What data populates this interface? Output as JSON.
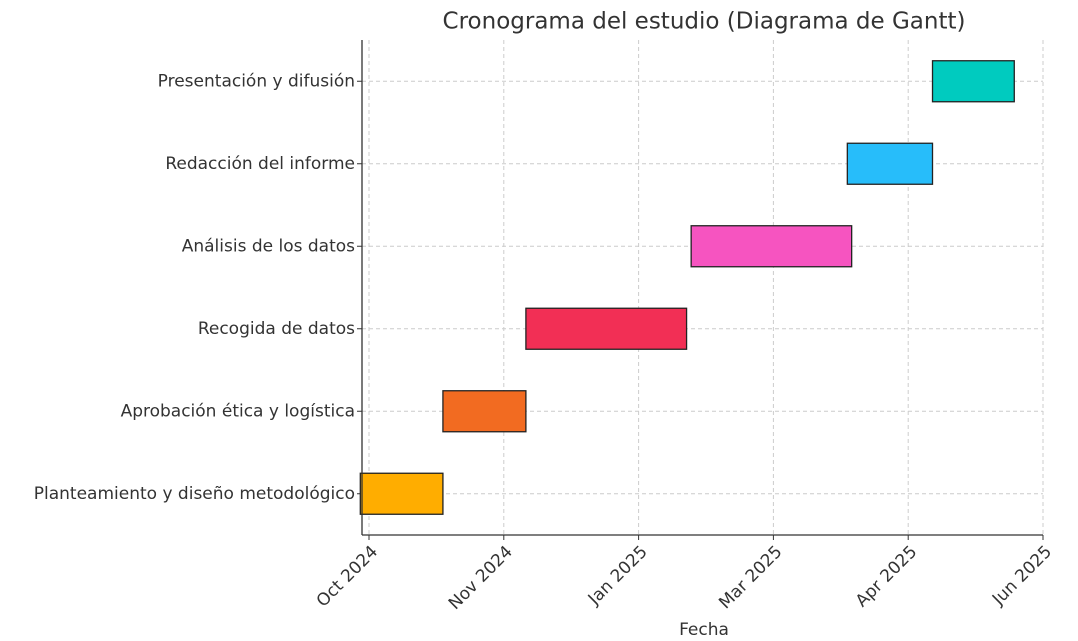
{
  "chart_data": {
    "type": "gantt",
    "title": "Cronograma del estudio (Diagrama de Gantt)",
    "x_label": "Fecha",
    "categories": [
      "Planteamiento y diseño metodológico",
      "Aprobación ética y logística",
      "Recogida de datos",
      "Análisis de los datos",
      "Redacción del informe",
      "Presentación y difusión"
    ],
    "start": [
      "2024-09-29",
      "2024-10-18",
      "2024-11-11",
      "2025-01-24",
      "2025-03-18",
      "2025-04-12"
    ],
    "end": [
      "2024-10-18",
      "2024-11-11",
      "2025-01-22",
      "2025-03-19",
      "2025-04-12",
      "2025-05-19"
    ],
    "colors": [
      "#ffad00",
      "#f26b21",
      "#f22f55",
      "#f654c0",
      "#27bdfa",
      "#00cbbf"
    ],
    "xlim": [
      "2024-09-29",
      "2025-06-01"
    ],
    "xticks": [
      {
        "value": "2024-10-01",
        "label": "Oct 2024"
      },
      {
        "value": "2024-11-01",
        "label": "Nov 2024"
      },
      {
        "value": "2025-01-01",
        "label": "Jan 2025"
      },
      {
        "value": "2025-03-01",
        "label": "Mar 2025"
      },
      {
        "value": "2025-04-01",
        "label": "Apr 2025"
      },
      {
        "value": "2025-06-01",
        "label": "Jun 2025"
      }
    ],
    "grid": true
  }
}
